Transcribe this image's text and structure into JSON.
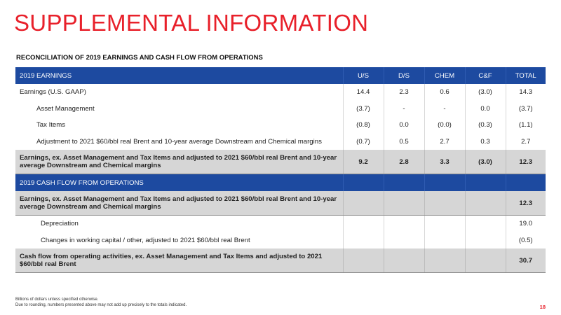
{
  "title": "SUPPLEMENTAL INFORMATION",
  "subtitle": "RECONCILIATION OF 2019 EARNINGS AND CASH FLOW FROM OPERATIONS",
  "earnings_header": {
    "label": "2019 EARNINGS",
    "columns": [
      "U/S",
      "D/S",
      "CHEM",
      "C&F",
      "TOTAL"
    ]
  },
  "earnings_rows": [
    {
      "label": "Earnings (U.S. GAAP)",
      "values": [
        "14.4",
        "2.3",
        "0.6",
        "(3.0)",
        "14.3"
      ]
    },
    {
      "label": "Asset Management",
      "values": [
        "(3.7)",
        "-",
        "-",
        "0.0",
        "(3.7)"
      ]
    },
    {
      "label": "Tax Items",
      "values": [
        "(0.8)",
        "0.0",
        "(0.0)",
        "(0.3)",
        "(1.1)"
      ]
    },
    {
      "label": "Adjustment to 2021 $60/bbl real Brent and 10-year average Downstream and Chemical margins",
      "values": [
        "(0.7)",
        "0.5",
        "2.7",
        "0.3",
        "2.7"
      ]
    }
  ],
  "earnings_total": {
    "label": "Earnings, ex. Asset Management and Tax Items and adjusted to 2021 $60/bbl real Brent and 10-year average Downstream and Chemical margins",
    "values": [
      "9.2",
      "2.8",
      "3.3",
      "(3.0)",
      "12.3"
    ]
  },
  "cashflow_header": {
    "label": "2019 CASH FLOW FROM OPERATIONS"
  },
  "cashflow_start": {
    "label": "Earnings, ex. Asset Management and Tax Items and adjusted to 2021 $60/bbl real Brent and 10-year average Downstream and Chemical margins",
    "total": "12.3"
  },
  "cashflow_rows": [
    {
      "label": "Depreciation",
      "total": "19.0"
    },
    {
      "label": "Changes in working capital / other, adjusted to 2021 $60/bbl real Brent",
      "total": "(0.5)"
    }
  ],
  "cashflow_total": {
    "label": "Cash flow from operating activities, ex. Asset Management and Tax Items and adjusted to 2021 $60/bbl real Brent",
    "total": "30.7"
  },
  "footnotes": [
    "Billions of dollars unless specified otherwise.",
    "Due to rounding, numbers presented above may not add up precisely to the totals indicated."
  ],
  "page_number": "18",
  "colors": {
    "accent": "#e8202a",
    "header_blue": "#1d4aa0",
    "total_gray": "#d6d6d6"
  }
}
